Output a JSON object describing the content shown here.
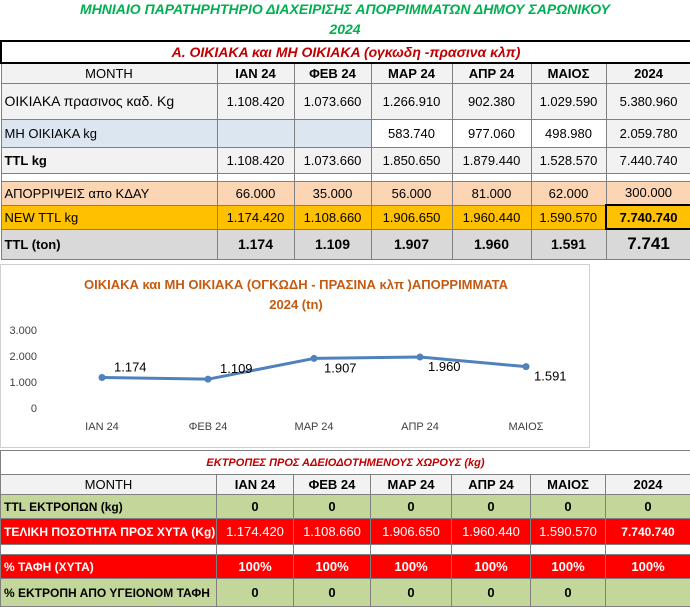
{
  "sheet": {
    "title_line1": "ΜΗΝΙΑΙΟ ΠΑΡΑΤΗΡΗΤΗΡΙΟ ΔΙΑΧΕΙΡΙΣΗΣ ΑΠΟΡΡΙΜΜΑΤΩΝ ΔΗΜΟΥ ΣΑΡΩΝΙΚΟΥ",
    "title_line2": "2024"
  },
  "top": {
    "section_title": "Α. ΟΙΚΙΑΚΑ και ΜΗ ΟΙΚΙΑΚΑ (ογκωδη -πρασινα κλπ)",
    "headers": [
      "MONTH",
      "ΙΑΝ 24",
      "ΦΕΒ 24",
      "ΜΑΡ 24",
      "ΑΠΡ 24",
      "ΜΑΙΟΣ",
      "2024"
    ],
    "rows": [
      {
        "label": "ΟΙΚΙΑΚΑ  πρασινος καδ. Kg",
        "cells": [
          "1.108.420",
          "1.073.660",
          "1.266.910",
          "902.380",
          "1.029.590",
          "5.380.960"
        ]
      },
      {
        "label": "ΜΗ ΟΙΚΙΑΚΑ  kg",
        "cells": [
          "",
          "",
          "583.740",
          "977.060",
          "498.980",
          "2.059.780"
        ]
      },
      {
        "label": "TTL kg",
        "cells": [
          "1.108.420",
          "1.073.660",
          "1.850.650",
          "1.879.440",
          "1.528.570",
          "7.440.740"
        ]
      },
      {
        "label": "ΑΠΟΡΡΙΨΕΙΣ  απο ΚΔΑΥ",
        "cells": [
          "66.000",
          "35.000",
          "56.000",
          "81.000",
          "62.000",
          "300.000"
        ]
      },
      {
        "label": "NEW TTL kg",
        "cells": [
          "1.174.420",
          "1.108.660",
          "1.906.650",
          "1.960.440",
          "1.590.570",
          "7.740.740"
        ]
      },
      {
        "label": "TTL (ton)",
        "cells": [
          "1.174",
          "1.109",
          "1.907",
          "1.960",
          "1.591",
          "7.741"
        ]
      }
    ]
  },
  "chart_data": {
    "type": "line",
    "title_line1": "ΟΙΚΙΑΚΑ και ΜΗ ΟΙΚΙΑΚΑ (ΟΓΚΩΔΗ - ΠΡΑΣΙΝΑ κλπ )ΑΠΟΡΡΙΜΜΑΤΑ",
    "title_line2": "2024 (tn)",
    "categories": [
      "ΙΑΝ 24",
      "ΦΕΒ 24",
      "ΜΑΡ 24",
      "ΑΠΡ 24",
      "ΜΑΙΟΣ"
    ],
    "values": [
      1174,
      1109,
      1907,
      1960,
      1591
    ],
    "data_labels": [
      "1.174",
      "1.109",
      "1.907",
      "1.960",
      "1.591"
    ],
    "ylim": [
      0,
      3000
    ],
    "yticks": [
      0,
      1000,
      2000,
      3000
    ],
    "ytick_labels": [
      "0",
      "1.000",
      "2.000",
      "3.000"
    ],
    "grid": false,
    "line_color": "#4f81bd"
  },
  "bottom": {
    "section_title": "ΕΚΤΡΟΠΕΣ  ΠΡΟΣ  ΑΔΕΙΟΔΟΤΗΜΕΝΟΥΣ ΧΩΡΟΥΣ (kg)",
    "headers": [
      "MONTH",
      "ΙΑΝ 24",
      "ΦΕΒ 24",
      "ΜΑΡ 24",
      "ΑΠΡ 24",
      "ΜΑΙΟΣ",
      "2024"
    ],
    "rows": [
      {
        "label": "TTL ΕΚΤΡΟΠΩΝ (kg)",
        "cells": [
          "0",
          "0",
          "0",
          "0",
          "0",
          "0"
        ]
      },
      {
        "label": "ΤΕΛΙΚΗ ΠΟΣΟΤΗΤΑ ΠΡΟΣ ΧΥΤΑ (Kg)",
        "cells": [
          "1.174.420",
          "1.108.660",
          "1.906.650",
          "1.960.440",
          "1.590.570",
          "7.740.740"
        ]
      },
      {
        "label": "% ΤΑΦΗ (ΧΥΤΑ)",
        "cells": [
          "100%",
          "100%",
          "100%",
          "100%",
          "100%",
          "100%"
        ]
      },
      {
        "label": "% ΕΚΤΡΟΠΗ ΑΠΟ ΥΓΕΙΟΝΟΜ ΤΑΦΗ",
        "cells": [
          "0",
          "0",
          "0",
          "0",
          "0",
          ""
        ]
      }
    ]
  },
  "colors": {
    "title_green": "#00b050",
    "section_red": "#c00000",
    "chart_title": "#c55a11",
    "row_gray": "#f2f2f2",
    "row_blue": "#dce6f1",
    "row_peach": "#fcd5b4",
    "row_orange": "#ffc000",
    "row_dark_gray": "#d9d9d9",
    "row_green": "#c4d79b",
    "row_red": "#ff0000"
  }
}
